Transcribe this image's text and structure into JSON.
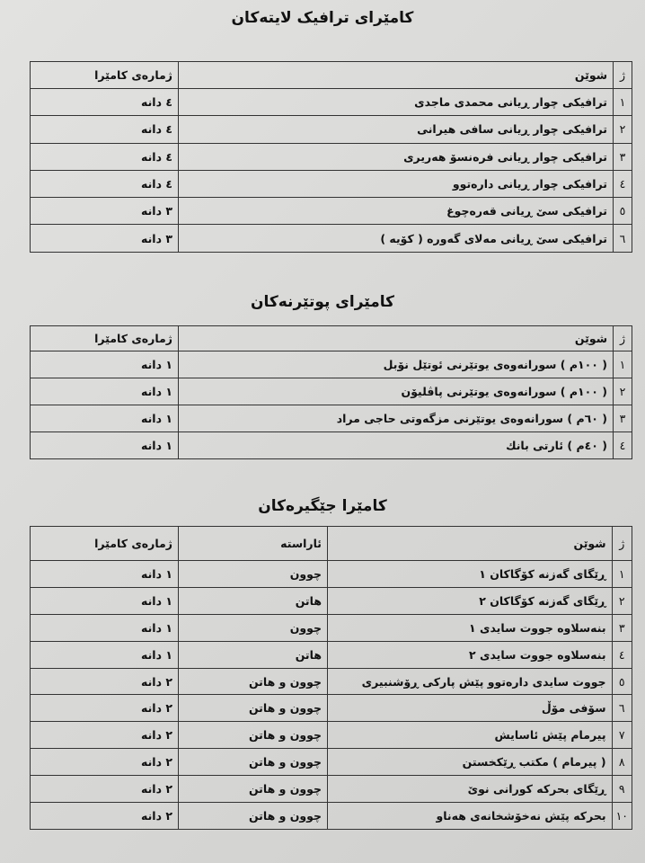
{
  "sections": [
    {
      "title": "کامێرای ترافیک لایتەکان",
      "headers": {
        "num": "ژ",
        "location": "شوێن",
        "count": "ژمارەی کامێرا"
      },
      "rows": [
        {
          "num": "١",
          "location": "ترافیکی چوار ڕیانی محمدی ماجدی",
          "count": "٤ دانە"
        },
        {
          "num": "٢",
          "location": "ترافیکی چوار ڕیانی سافی هیرانی",
          "count": "٤ دانە"
        },
        {
          "num": "٣",
          "location": "ترافیکی چوار ڕیانی فرەنسۆ هەریری",
          "count": "٤ دانە"
        },
        {
          "num": "٤",
          "location": "ترافیکی چوار ڕیانی دارەتوو",
          "count": "٤ دانە"
        },
        {
          "num": "٥",
          "location": "ترافیکی سێ ڕیانی قەرەچوغ",
          "count": "٣ دانە"
        },
        {
          "num": "٦",
          "location": "ترافیکی سێ ڕیانی مەلای گەورە ( کۆیە )",
          "count": "٣ دانە"
        }
      ]
    },
    {
      "title": "کامێرای پوتێرنەکان",
      "headers": {
        "num": "ژ",
        "location": "شوێن",
        "count": "ژمارەی کامێرا"
      },
      "rows": [
        {
          "num": "١",
          "location": "( ١٠٠م ) سورانەوەی یوتێرنی ئوتێل نۆبل",
          "count": "١ دانە"
        },
        {
          "num": "٢",
          "location": "( ١٠٠م ) سورانەوەی یوتێرنی پاڤلیۆن",
          "count": "١ دانە"
        },
        {
          "num": "٣",
          "location": "( ٦٠م ) سورانەوەی یوتێرنی مزگەوتی حاجی مراد",
          "count": "١ دانە"
        },
        {
          "num": "٤",
          "location": "( ٤٠م ) ئارتی بانك",
          "count": "١ دانە"
        }
      ]
    },
    {
      "title": "کامێرا جێگیرەکان",
      "headers": {
        "num": "ژ",
        "location": "شوێن",
        "direction": "ئاراستە",
        "count": "ژمارەی کامێرا"
      },
      "rows": [
        {
          "num": "١",
          "location": "ڕێگای گەزنە کۆگاکان ١",
          "direction": "چوون",
          "count": "١ دانە"
        },
        {
          "num": "٢",
          "location": "ڕێگای گەزنە کۆگاکان ٢",
          "direction": "هاتن",
          "count": "١ دانە"
        },
        {
          "num": "٣",
          "location": "بنەسلاوە جووت سایدی ١",
          "direction": "چوون",
          "count": "١ دانە"
        },
        {
          "num": "٤",
          "location": "بنەسلاوە جووت سایدی ٢",
          "direction": "هاتن",
          "count": "١ دانە"
        },
        {
          "num": "٥",
          "location": "جووت سایدی دارەتوو پێش پارکی ڕۆشنبیری",
          "direction": "چوون و هاتن",
          "count": "٢ دانە"
        },
        {
          "num": "٦",
          "location": "سۆفی مۆڵ",
          "direction": "چوون و هاتن",
          "count": "٢ دانە"
        },
        {
          "num": "٧",
          "location": "پیرمام پێش ئاسایش",
          "direction": "چوون و هاتن",
          "count": "٢ دانە"
        },
        {
          "num": "٨",
          "location": "( پیرمام ) مکتب ڕێکخستن",
          "direction": "چوون و هاتن",
          "count": "٢ دانە"
        },
        {
          "num": "٩",
          "location": "ڕێگای بحرکە کورانی نوێ",
          "direction": "چوون و هاتن",
          "count": "٢ دانە"
        },
        {
          "num": "١٠",
          "location": "بحرکە پێش نەخۆشخانەی هەناو",
          "direction": "چوون و هاتن",
          "count": "٢ دانە"
        }
      ]
    }
  ]
}
